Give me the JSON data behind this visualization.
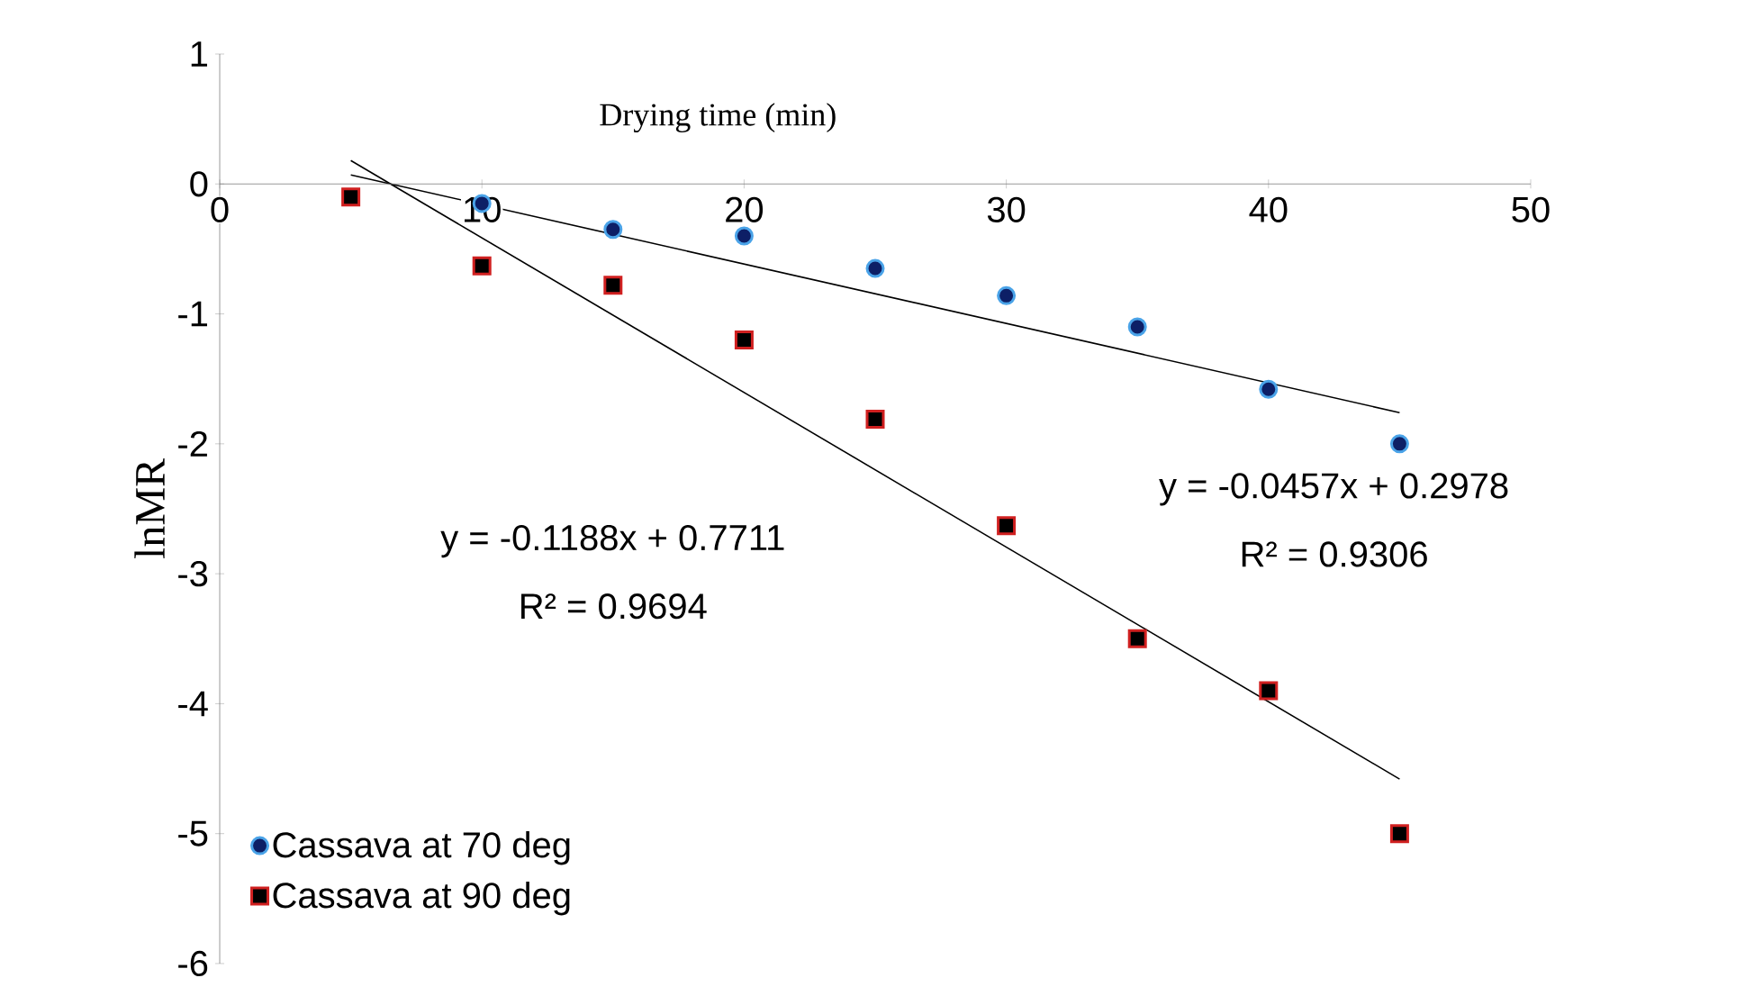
{
  "chart_data": {
    "type": "scatter",
    "xlabel": "Drying time (min)",
    "ylabel": "lnMR",
    "xlim": [
      0,
      50
    ],
    "xticks": [
      0,
      10,
      20,
      30,
      40,
      50
    ],
    "ylim": [
      -6,
      1
    ],
    "yticks": [
      -6,
      -5,
      -4,
      -3,
      -2,
      -1,
      0,
      1
    ],
    "legend": "bottom left",
    "series": [
      {
        "name": "Cassava at 70 deg",
        "color": "#0d1f66",
        "marker": "circle",
        "x": [
          10,
          15,
          20,
          25,
          30,
          35,
          40,
          45
        ],
        "values": [
          -0.15,
          -0.35,
          -0.4,
          -0.65,
          -0.86,
          -1.1,
          -1.58,
          -2.0
        ]
      },
      {
        "name": "Cassava at 90 deg",
        "color": "#000000",
        "marker": "square",
        "x": [
          5,
          10,
          15,
          20,
          25,
          30,
          35,
          40,
          45
        ],
        "values": [
          -0.1,
          -0.63,
          -0.78,
          -1.2,
          -1.81,
          -2.63,
          -3.5,
          -3.9,
          -5.0
        ]
      },
      {
        "type": "line",
        "color": "#000000",
        "x": [
          5,
          45
        ],
        "values": [
          0.07,
          -1.76
        ]
      },
      {
        "type": "line",
        "color": "#000000",
        "x": [
          5,
          45
        ],
        "values": [
          0.18,
          -4.58
        ]
      }
    ],
    "annotations": [
      "y = -0.1188x + 0.7711",
      "R² = 0.9694",
      "y = -0.0457x + 0.2978",
      "R² = 0.9306"
    ]
  }
}
